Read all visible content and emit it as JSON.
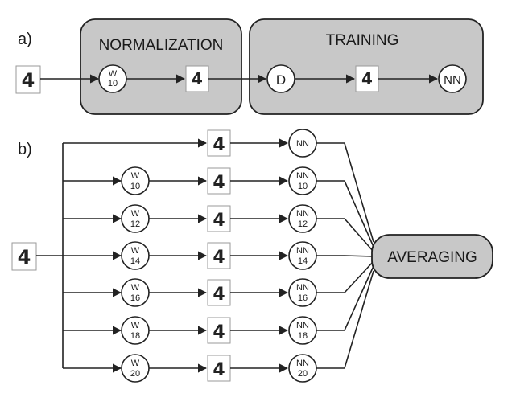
{
  "panel_a": {
    "label": "a)",
    "normalization_title": "NORMALIZATION",
    "training_title": "TRAINING",
    "w_node": {
      "top": "W",
      "bottom": "10"
    },
    "d_node": "D",
    "nn_node": "NN",
    "digit": "4"
  },
  "panel_b": {
    "label": "b)",
    "input_digit": "4",
    "averaging_label": "AVERAGING",
    "rows": [
      {
        "w": null,
        "nn_top": "NN",
        "nn_bottom": "",
        "digit": "4"
      },
      {
        "w": "10",
        "nn_top": "NN",
        "nn_bottom": "10",
        "digit": "4"
      },
      {
        "w": "12",
        "nn_top": "NN",
        "nn_bottom": "12",
        "digit": "4"
      },
      {
        "w": "14",
        "nn_top": "NN",
        "nn_bottom": "14",
        "digit": "4"
      },
      {
        "w": "16",
        "nn_top": "NN",
        "nn_bottom": "16",
        "digit": "4"
      },
      {
        "w": "18",
        "nn_top": "NN",
        "nn_bottom": "18",
        "digit": "4"
      },
      {
        "w": "20",
        "nn_top": "NN",
        "nn_bottom": "20",
        "digit": "4"
      }
    ],
    "w_letter": "W"
  }
}
